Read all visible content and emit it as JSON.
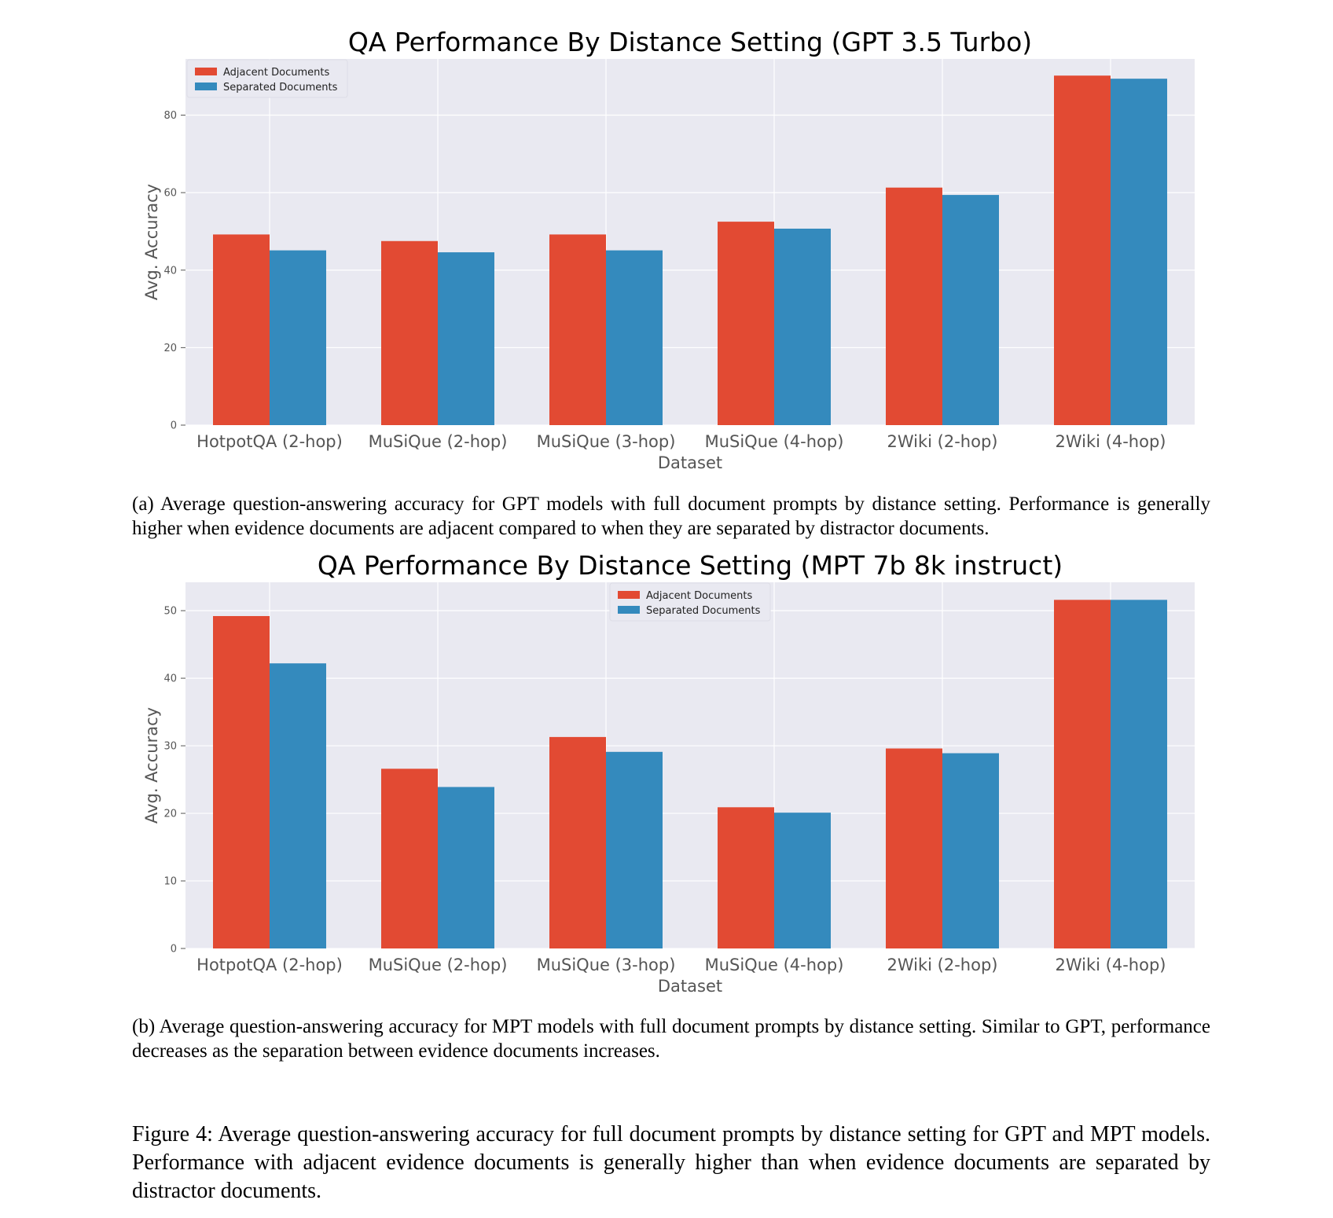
{
  "chart_data": [
    {
      "type": "bar",
      "title": "QA Performance By Distance Setting (GPT 3.5 Turbo)",
      "xlabel": "Dataset",
      "ylabel": "Avg. Accuracy",
      "categories": [
        "HotpotQA (2-hop)",
        "MuSiQue (2-hop)",
        "MuSiQue (3-hop)",
        "MuSiQue (4-hop)",
        "2Wiki (2-hop)",
        "2Wiki (4-hop)"
      ],
      "series": [
        {
          "name": "Adjacent Documents",
          "color": "#e24a33",
          "values": [
            49.2,
            47.5,
            49.2,
            52.5,
            61.3,
            90.2
          ]
        },
        {
          "name": "Separated Documents",
          "color": "#348abd",
          "values": [
            45.1,
            44.6,
            45.1,
            50.7,
            59.4,
            89.4
          ]
        }
      ],
      "ylim": [
        0,
        94.5
      ],
      "yticks": [
        0,
        20,
        40,
        60,
        80
      ],
      "grid": true,
      "legend_position": "top-left"
    },
    {
      "type": "bar",
      "title": "QA Performance By Distance Setting (MPT 7b 8k instruct)",
      "xlabel": "Dataset",
      "ylabel": "Avg. Accuracy",
      "categories": [
        "HotpotQA (2-hop)",
        "MuSiQue (2-hop)",
        "MuSiQue (3-hop)",
        "MuSiQue (4-hop)",
        "2Wiki (2-hop)",
        "2Wiki (4-hop)"
      ],
      "series": [
        {
          "name": "Adjacent Documents",
          "color": "#e24a33",
          "values": [
            49.2,
            26.6,
            31.3,
            20.9,
            29.6,
            51.6
          ]
        },
        {
          "name": "Separated Documents",
          "color": "#348abd",
          "values": [
            42.2,
            23.9,
            29.1,
            20.1,
            28.9,
            51.6
          ]
        }
      ],
      "ylim": [
        0,
        54.2
      ],
      "yticks": [
        0,
        10,
        20,
        30,
        40,
        50
      ],
      "grid": true,
      "legend_position": "top-center"
    }
  ],
  "captions": {
    "a": "(a) Average question-answering accuracy for GPT models with full document prompts by distance setting. Performance is generally higher when evidence documents are adjacent compared to when they are separated by distractor documents.",
    "b": "(b) Average question-answering accuracy for MPT models with full document prompts by distance setting. Similar to GPT, performance decreases as the separation between evidence documents increases.",
    "figure": "Figure 4: Average question-answering accuracy for full document prompts by distance setting for GPT and MPT models. Performance with adjacent evidence documents is generally higher than when evidence documents are separated by distractor documents."
  },
  "style": {
    "plot_background": "#e9e9f1",
    "grid_color": "#ffffff"
  }
}
